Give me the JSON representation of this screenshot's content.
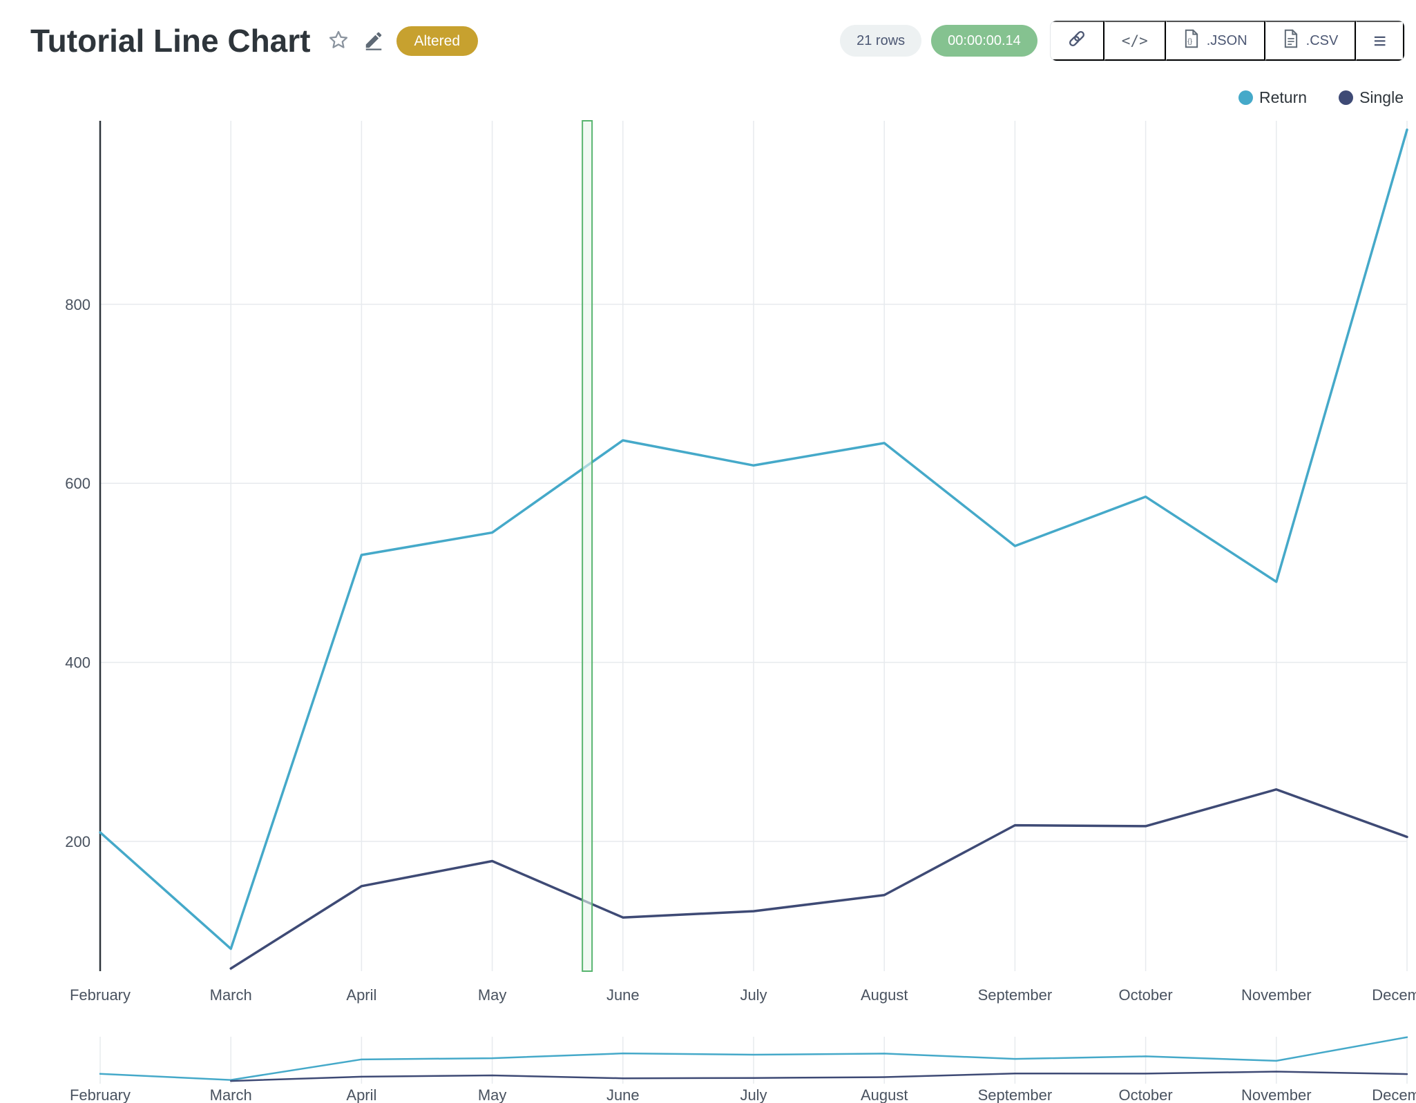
{
  "header": {
    "title": "Tutorial Line Chart",
    "badge": "Altered",
    "rows": "21 rows",
    "timer": "00:00:00.14",
    "export": {
      "json": ".JSON",
      "csv": ".CSV"
    }
  },
  "legend": {
    "items": [
      {
        "label": "Return",
        "color": "#45a9c9"
      },
      {
        "label": "Single",
        "color": "#3e4a75"
      }
    ]
  },
  "chart_data": {
    "type": "line",
    "title": "",
    "xlabel": "",
    "ylabel": "",
    "categories": [
      "February",
      "March",
      "April",
      "May",
      "June",
      "July",
      "August",
      "September",
      "October",
      "November",
      "December"
    ],
    "series": [
      {
        "name": "Return",
        "color": "#45a9c9",
        "values": [
          210,
          80,
          520,
          545,
          648,
          620,
          645,
          530,
          585,
          490,
          995
        ]
      },
      {
        "name": "Single",
        "color": "#3e4a75",
        "values": [
          null,
          58,
          150,
          178,
          115,
          122,
          140,
          218,
          217,
          258,
          205
        ]
      }
    ],
    "ylim": [
      55,
      1005
    ],
    "yticks": [
      200,
      400,
      600,
      800
    ],
    "grid": true,
    "legend_position": "top-right",
    "last_x_label_clipped": true,
    "selection_band": {
      "x_fraction": 0.369,
      "width_fraction": 0.0074,
      "fill": "#e8f5eb",
      "stroke": "#57b46e"
    }
  },
  "mini_chart": {
    "type": "line",
    "role": "overview-strip",
    "uses_same_series": true,
    "ylim": [
      0,
      1005
    ]
  }
}
